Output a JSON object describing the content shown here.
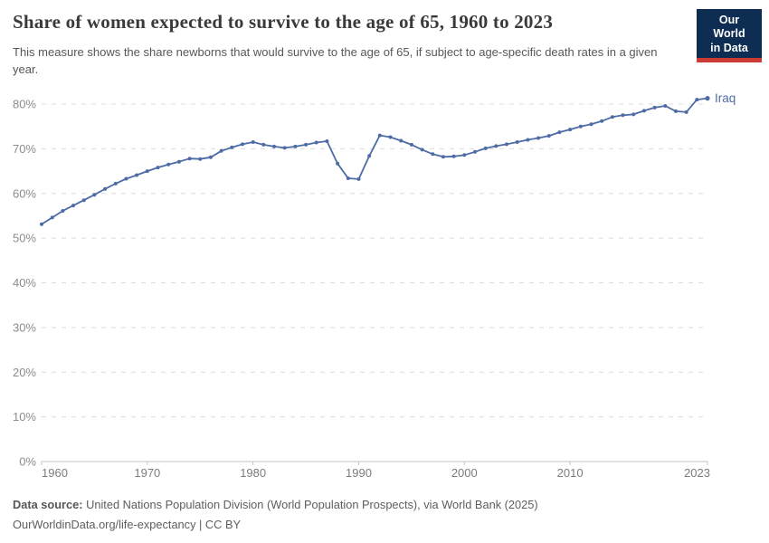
{
  "header": {
    "title": "Share of women expected to survive to the age of 65, 1960 to 2023",
    "subtitle": "This measure shows the share newborns that would survive to the age of 65, if subject to age-specific death rates in a given year.",
    "logo": {
      "line1": "Our World",
      "line2": "in Data"
    }
  },
  "chart_data": {
    "type": "line",
    "title": "Share of women expected to survive to the age of 65, 1960 to 2023",
    "xlabel": "",
    "ylabel": "",
    "xlim": [
      1960,
      2023
    ],
    "ylim": [
      0,
      85
    ],
    "grid": "horizontal-dashed",
    "legend_position": "end-of-line-label",
    "x_ticks": [
      1960,
      1970,
      1980,
      1990,
      2000,
      2010,
      2023
    ],
    "y_ticks": [
      0,
      10,
      20,
      30,
      40,
      50,
      60,
      70,
      80
    ],
    "y_tick_suffix": "%",
    "series": [
      {
        "name": "Iraq",
        "end_label": "Iraq",
        "color": "#4d6ba5",
        "x": [
          1960,
          1961,
          1962,
          1963,
          1964,
          1965,
          1966,
          1967,
          1968,
          1969,
          1970,
          1971,
          1972,
          1973,
          1974,
          1975,
          1976,
          1977,
          1978,
          1979,
          1980,
          1981,
          1982,
          1983,
          1984,
          1985,
          1986,
          1987,
          1988,
          1989,
          1990,
          1991,
          1992,
          1993,
          1994,
          1995,
          1996,
          1997,
          1998,
          1999,
          2000,
          2001,
          2002,
          2003,
          2004,
          2005,
          2006,
          2007,
          2008,
          2009,
          2010,
          2011,
          2012,
          2013,
          2014,
          2015,
          2016,
          2017,
          2018,
          2019,
          2020,
          2021,
          2022,
          2023
        ],
        "values": [
          53.1,
          54.6,
          56.1,
          57.3,
          58.5,
          59.7,
          61.0,
          62.2,
          63.3,
          64.1,
          65.0,
          65.8,
          66.5,
          67.1,
          67.8,
          67.7,
          68.1,
          69.5,
          70.3,
          71.0,
          71.5,
          70.9,
          70.5,
          70.2,
          70.5,
          70.9,
          71.4,
          71.7,
          66.7,
          63.4,
          63.2,
          68.4,
          73.0,
          72.6,
          71.8,
          70.9,
          69.8,
          68.8,
          68.2,
          68.3,
          68.6,
          69.3,
          70.1,
          70.6,
          71.0,
          71.5,
          72.0,
          72.4,
          72.9,
          73.7,
          74.3,
          75.0,
          75.5,
          76.2,
          77.1,
          77.5,
          77.7,
          78.5,
          79.2,
          79.6,
          78.4,
          78.2,
          81.0,
          81.3
        ]
      }
    ]
  },
  "footer": {
    "datasource_label": "Data source:",
    "datasource_text": " United Nations Population Division (World Population Prospects), via World Bank (2025)",
    "attribution": "OurWorldinData.org/life-expectancy | CC BY"
  },
  "colors": {
    "line": "#4d6ba5",
    "gridline": "#dcdcdc",
    "axis": "#c4c4c4",
    "y_tick_label": "#8c8c8c",
    "x_tick_label": "#7c7c7c",
    "logo_background": "#0d2e52",
    "logo_stripe": "#cc3b33"
  }
}
